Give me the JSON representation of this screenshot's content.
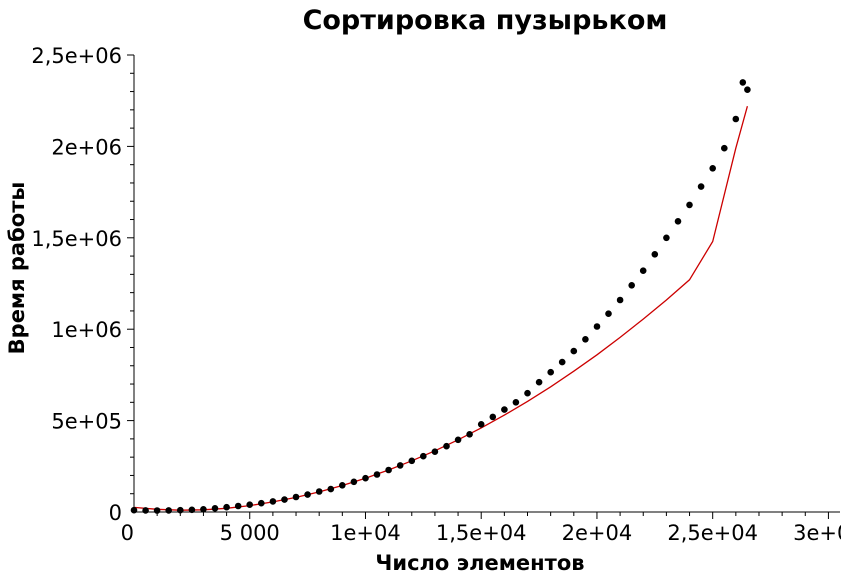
{
  "chart_data": {
    "type": "scatter",
    "title": "Сортировка пузырьком",
    "xlabel": "Число элементов",
    "ylabel": "Время работы",
    "xlim": [
      0,
      30500
    ],
    "ylim": [
      0,
      2500000
    ],
    "grid": false,
    "x_ticks": [
      {
        "value": 0,
        "label": "0"
      },
      {
        "value": 5000,
        "label": "5 000"
      },
      {
        "value": 10000,
        "label": "1e+04"
      },
      {
        "value": 15000,
        "label": "1,5e+04"
      },
      {
        "value": 20000,
        "label": "2e+04"
      },
      {
        "value": 25000,
        "label": "2,5e+04"
      },
      {
        "value": 30000,
        "label": "3e+04"
      }
    ],
    "y_ticks": [
      {
        "value": 0,
        "label": "0"
      },
      {
        "value": 500000,
        "label": "5e+05"
      },
      {
        "value": 1000000,
        "label": "1e+06"
      },
      {
        "value": 1500000,
        "label": "1,5e+06"
      },
      {
        "value": 2000000,
        "label": "2e+06"
      },
      {
        "value": 2500000,
        "label": "2,5e+06"
      }
    ],
    "series": [
      {
        "type": "scatter",
        "color": "#000000",
        "x": [
          0,
          500,
          1000,
          1500,
          2000,
          2500,
          3000,
          3500,
          4000,
          4500,
          5000,
          5500,
          6000,
          6500,
          7000,
          7500,
          8000,
          8500,
          9000,
          9500,
          10000,
          10500,
          11000,
          11500,
          12000,
          12500,
          13000,
          13500,
          14000,
          14500,
          15000,
          15500,
          16000,
          16500,
          17000,
          17500,
          18000,
          18500,
          19000,
          19500,
          20000,
          20500,
          21000,
          21500,
          22000,
          22500,
          23000,
          23500,
          24000,
          24500,
          25000,
          25500,
          26000,
          26300,
          26500
        ],
        "y": [
          10000,
          9000,
          8000,
          8500,
          10000,
          12000,
          15000,
          20000,
          26000,
          33000,
          40000,
          48000,
          58000,
          68000,
          82000,
          95000,
          112000,
          125000,
          146000,
          165000,
          185000,
          205000,
          230000,
          255000,
          280000,
          305000,
          330000,
          360000,
          395000,
          425000,
          480000,
          520000,
          560000,
          600000,
          650000,
          710000,
          765000,
          820000,
          880000,
          945000,
          1015000,
          1085000,
          1160000,
          1240000,
          1320000,
          1410000,
          1500000,
          1590000,
          1680000,
          1780000,
          1880000,
          1990000,
          2150000,
          2350000,
          2310000
        ]
      },
      {
        "type": "line",
        "color": "#cc0000",
        "x": [
          0,
          1000,
          2000,
          3000,
          4000,
          5000,
          6000,
          7000,
          8000,
          9000,
          10000,
          11000,
          12000,
          13000,
          14000,
          15000,
          16000,
          17000,
          18000,
          19000,
          20000,
          21000,
          22000,
          23000,
          24000,
          25000,
          26000,
          26500
        ],
        "y": [
          25000,
          15000,
          10000,
          12000,
          20000,
          35000,
          55000,
          80000,
          110000,
          145000,
          185000,
          230000,
          280000,
          335000,
          395000,
          460000,
          530000,
          605000,
          685000,
          770000,
          860000,
          955000,
          1055000,
          1160000,
          1270000,
          1480000,
          1990000,
          2220000
        ]
      }
    ]
  }
}
